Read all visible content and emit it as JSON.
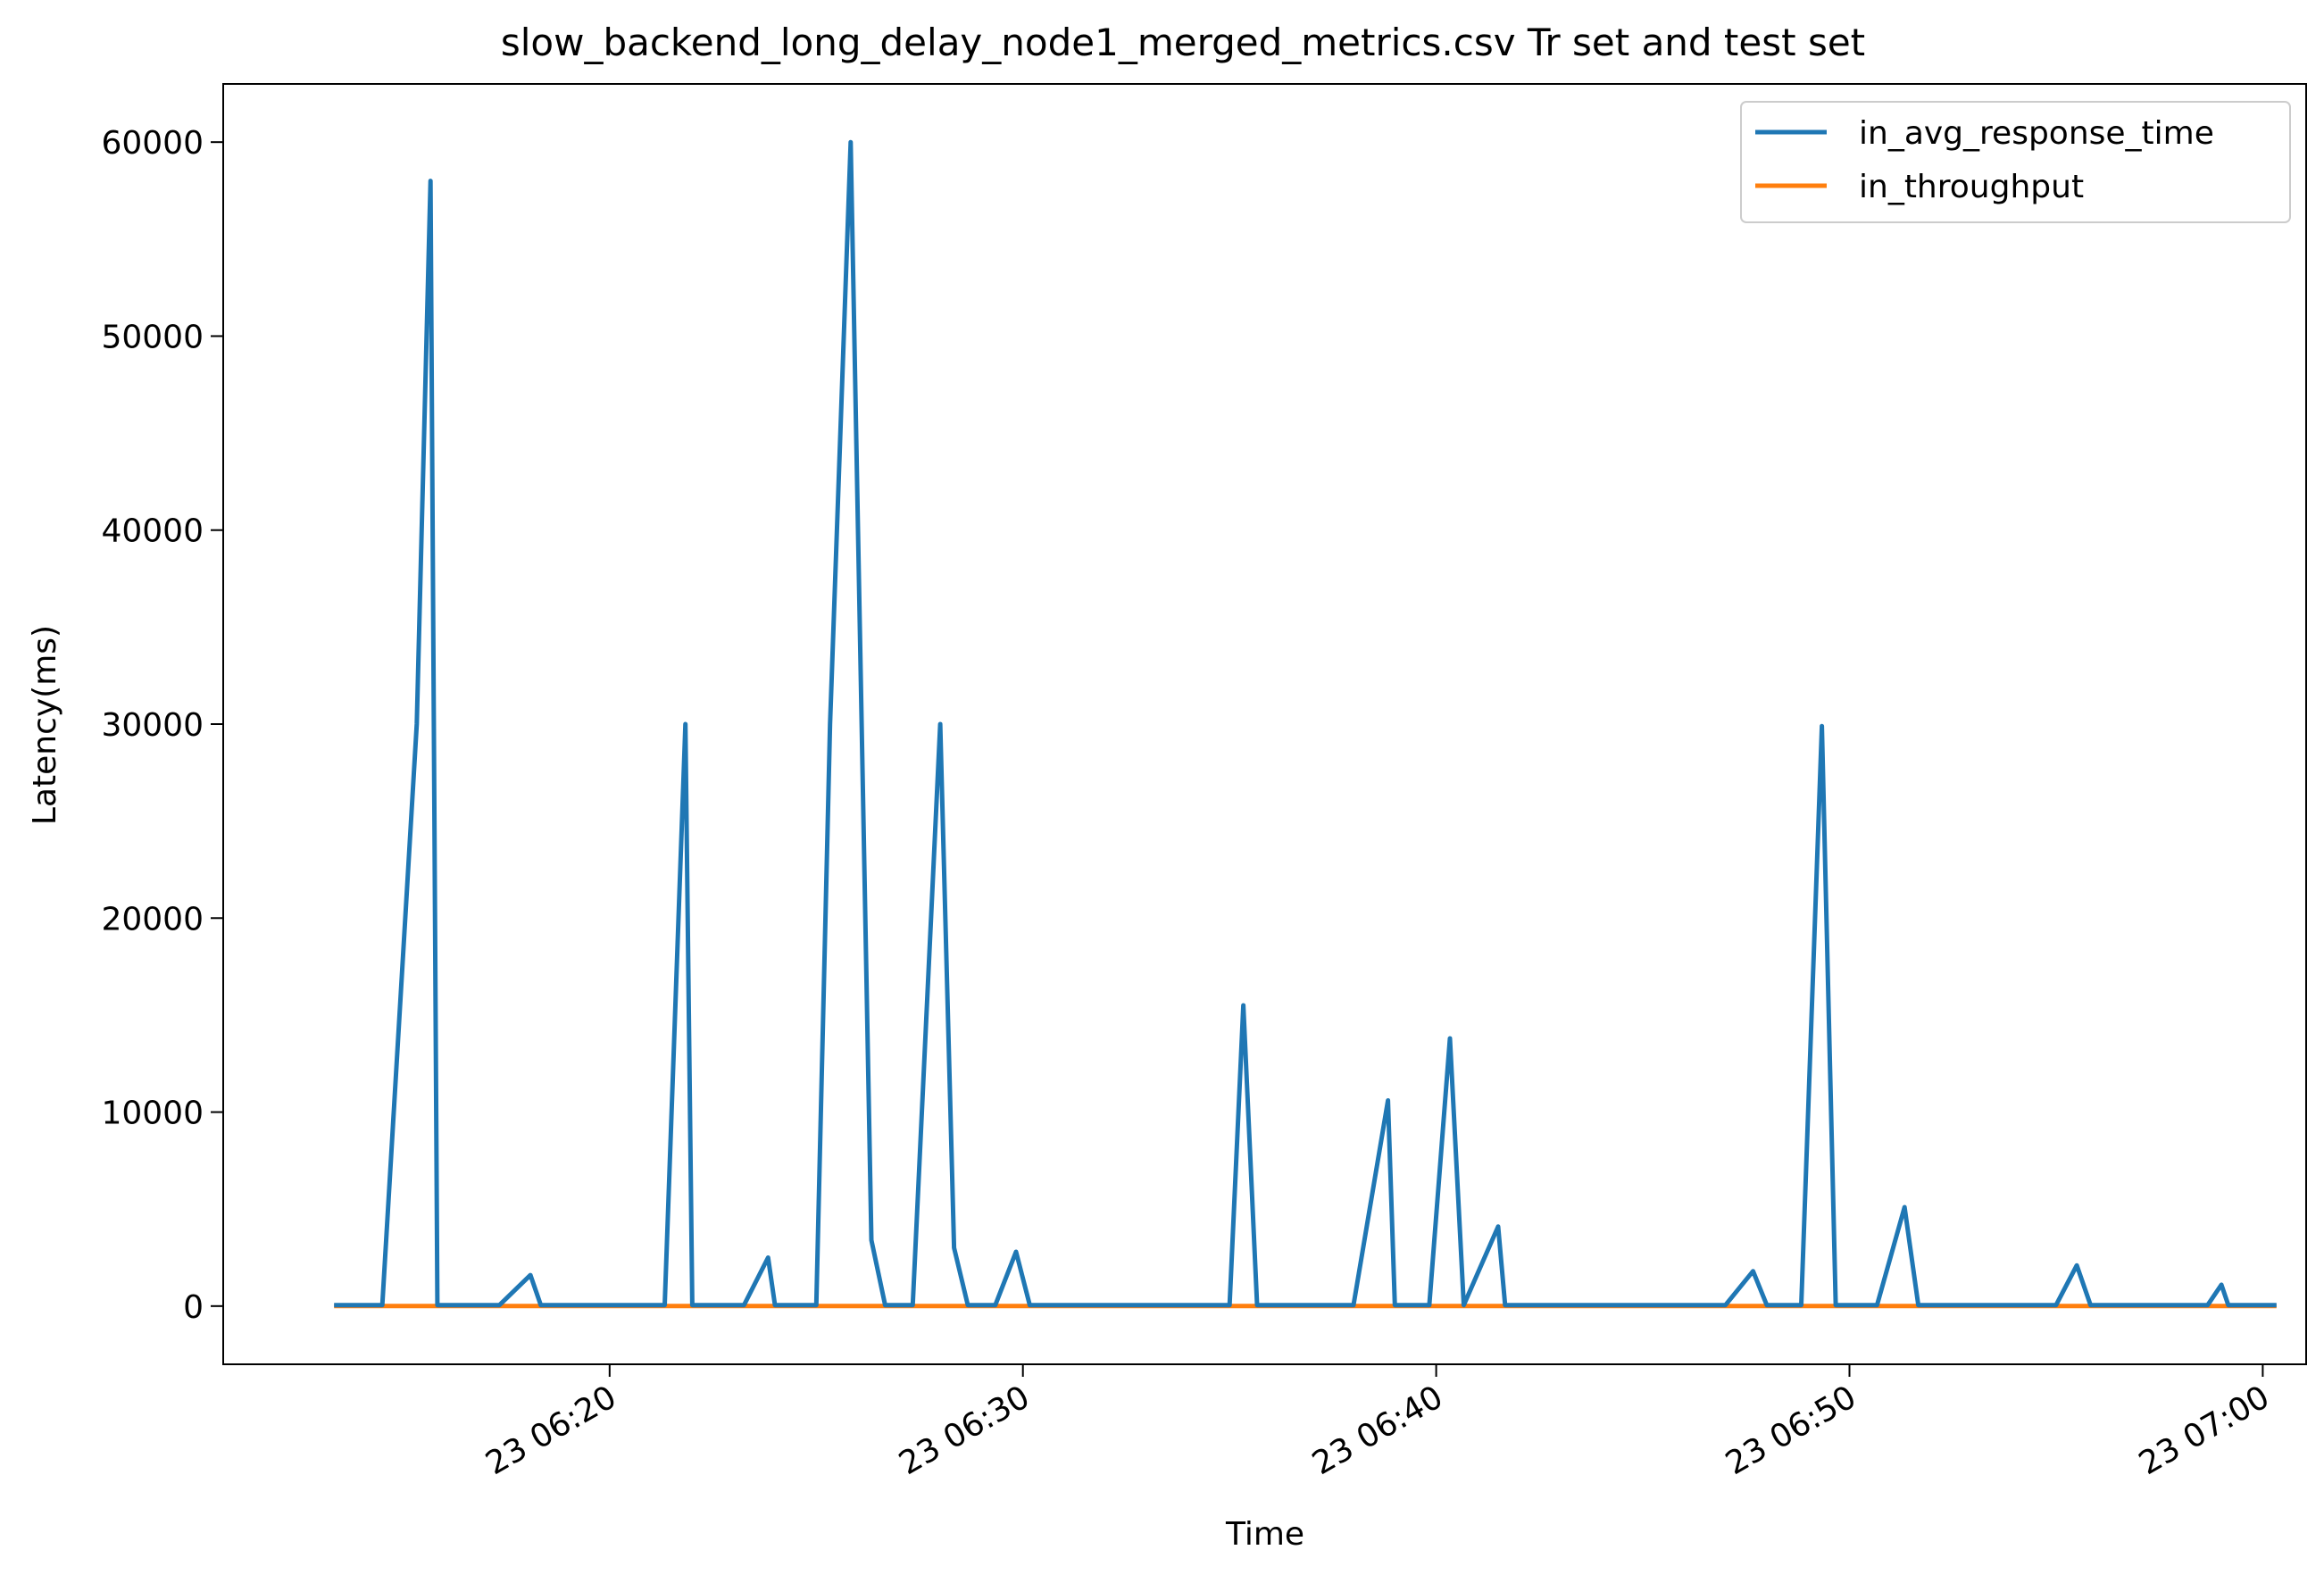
{
  "chart_data": {
    "type": "line",
    "title": "slow_backend_long_delay_node1_merged_metrics.csv Tr set and test set",
    "xlabel": "Time",
    "ylabel": "Latency(ms)",
    "ylim": [
      -3000,
      63000
    ],
    "yticks": [
      0,
      10000,
      20000,
      30000,
      40000,
      50000,
      60000
    ],
    "yticklabels": [
      "0",
      "10000",
      "20000",
      "30000",
      "40000",
      "50000",
      "60000"
    ],
    "xlim": [
      "06:10:39",
      "07:01:03"
    ],
    "xticks": [
      "06:20:00",
      "06:30:00",
      "06:40:00",
      "06:50:00",
      "07:00:00"
    ],
    "xticklabels": [
      "23 06:20",
      "23 06:30",
      "23 06:40",
      "23 06:50",
      "23 07:00"
    ],
    "grid": false,
    "legend_position": "upper right",
    "series": [
      {
        "name": "in_avg_response_time",
        "color": "#1f77b4",
        "x": [
          "06:13:20",
          "06:14:30",
          "06:15:20",
          "06:15:40",
          "06:15:50",
          "06:17:20",
          "06:18:05",
          "06:18:20",
          "06:19:40",
          "06:20:40",
          "06:21:20",
          "06:21:50",
          "06:22:00",
          "06:23:15",
          "06:23:50",
          "06:24:00",
          "06:25:00",
          "06:25:20",
          "06:25:50",
          "06:26:20",
          "06:26:40",
          "06:27:20",
          "06:28:00",
          "06:28:20",
          "06:28:40",
          "06:29:20",
          "06:29:50",
          "06:30:10",
          "06:31:20",
          "06:32:40",
          "06:34:00",
          "06:35:00",
          "06:35:20",
          "06:35:40",
          "06:36:40",
          "06:38:00",
          "06:38:50",
          "06:39:00",
          "06:39:50",
          "06:40:20",
          "06:40:40",
          "06:41:30",
          "06:41:40",
          "06:42:40",
          "06:44:00",
          "06:45:30",
          "06:47:00",
          "06:47:40",
          "06:48:00",
          "06:48:50",
          "06:49:20",
          "06:49:40",
          "06:50:40",
          "06:51:20",
          "06:51:40",
          "06:52:40",
          "06:54:00",
          "06:55:00",
          "06:55:30",
          "06:55:50",
          "06:57:00",
          "06:58:40",
          "06:59:00",
          "06:59:10",
          "07:00:20"
        ],
        "values": [
          50,
          50,
          30000,
          58000,
          50,
          50,
          1600,
          50,
          50,
          50,
          50,
          30000,
          50,
          50,
          2500,
          50,
          50,
          30000,
          60000,
          3400,
          50,
          50,
          30000,
          3000,
          50,
          50,
          2800,
          50,
          50,
          50,
          50,
          50,
          15500,
          50,
          50,
          50,
          10600,
          50,
          50,
          13800,
          50,
          4100,
          50,
          50,
          50,
          50,
          50,
          1800,
          50,
          50,
          29900,
          50,
          50,
          5100,
          50,
          50,
          50,
          50,
          2100,
          50,
          50,
          50,
          1100,
          50,
          50
        ]
      },
      {
        "name": "in_throughput",
        "color": "#ff7f0e",
        "x": [
          "06:13:20",
          "06:20:00",
          "06:30:00",
          "06:40:00",
          "06:50:00",
          "07:00:20"
        ],
        "values": [
          5,
          5,
          5,
          5,
          5,
          5
        ]
      }
    ]
  }
}
